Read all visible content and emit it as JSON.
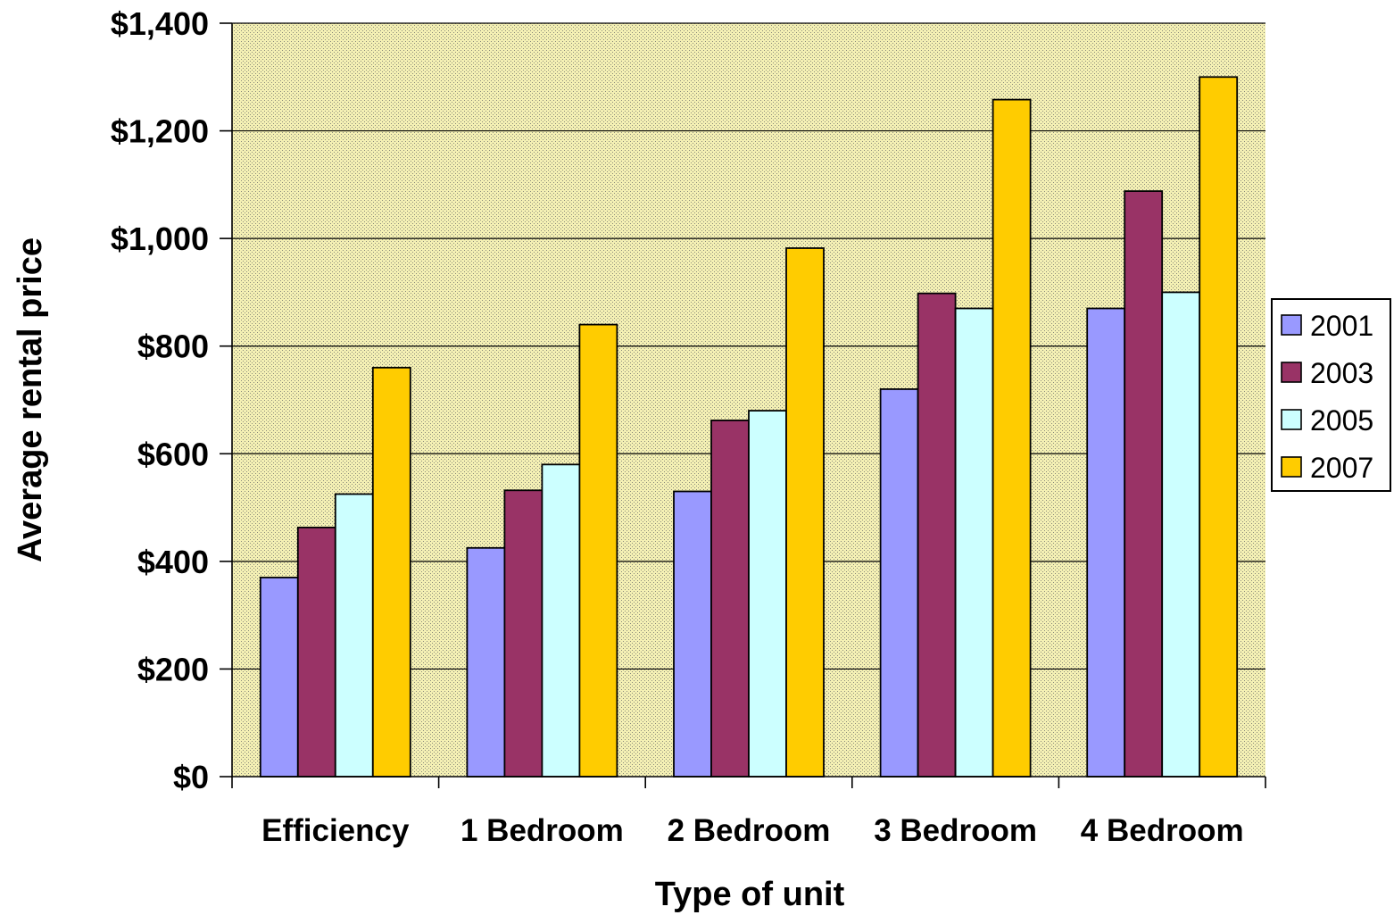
{
  "chart_data": {
    "type": "bar",
    "title": "",
    "xlabel": "Type of unit",
    "ylabel": "Average rental price",
    "categories": [
      "Efficiency",
      "1 Bedroom",
      "2 Bedroom",
      "3 Bedroom",
      "4 Bedroom"
    ],
    "series": [
      {
        "name": "2001",
        "values": [
          370,
          425,
          530,
          720,
          870
        ],
        "color": "#9999FF"
      },
      {
        "name": "2003",
        "values": [
          463,
          532,
          662,
          898,
          1088
        ],
        "color": "#993366"
      },
      {
        "name": "2005",
        "values": [
          525,
          580,
          680,
          870,
          900
        ],
        "color": "#CCFFFF"
      },
      {
        "name": "2007",
        "values": [
          760,
          840,
          982,
          1258,
          1300
        ],
        "color": "#FFCC00"
      }
    ],
    "ylim": [
      0,
      1400
    ],
    "yticks": [
      0,
      200,
      400,
      600,
      800,
      1000,
      1200,
      1400
    ],
    "ytick_labels": [
      "$0",
      "$200",
      "$400",
      "$600",
      "$800",
      "$1,000",
      "$1,200",
      "$1,400"
    ],
    "grid": true,
    "legend_position": "right",
    "plot_background": "#FFFFCC",
    "gridline_color": "#000000"
  }
}
